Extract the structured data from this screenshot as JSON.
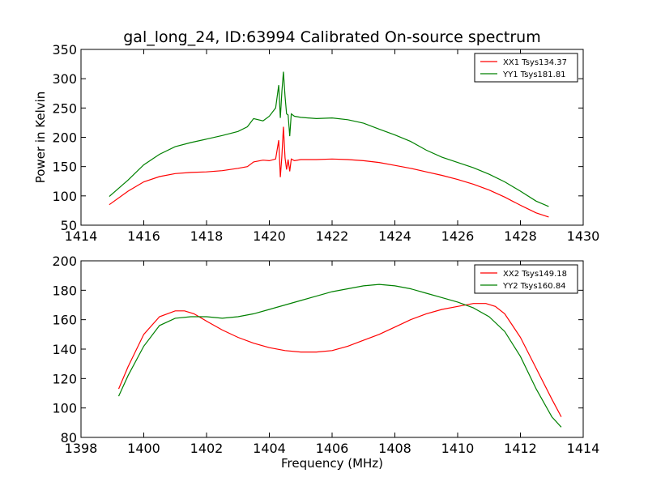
{
  "chart_data": [
    {
      "type": "line",
      "title": "gal_long_24, ID:63994 Calibrated On-source spectrum",
      "xlabel": "",
      "ylabel": "Power in Kelvin",
      "xlim": [
        1414,
        1430
      ],
      "ylim": [
        50,
        350
      ],
      "xticks": [
        "1414",
        "1416",
        "1418",
        "1420",
        "1422",
        "1424",
        "1426",
        "1428",
        "1430"
      ],
      "yticks": [
        "50",
        "100",
        "150",
        "200",
        "250",
        "300",
        "350"
      ],
      "legend_position": "top-right",
      "grid": false,
      "series": [
        {
          "name": "XX1 Tsys134.37",
          "color": "#ff0000",
          "x": [
            1414.9,
            1415.5,
            1416.0,
            1416.5,
            1417.0,
            1417.5,
            1418.0,
            1418.5,
            1419.0,
            1419.3,
            1419.5,
            1419.8,
            1420.0,
            1420.2,
            1420.3,
            1420.35,
            1420.4,
            1420.45,
            1420.5,
            1420.55,
            1420.6,
            1420.65,
            1420.7,
            1420.8,
            1421.0,
            1421.5,
            1422.0,
            1422.5,
            1423.0,
            1423.5,
            1424.0,
            1424.5,
            1425.0,
            1425.5,
            1426.0,
            1426.5,
            1427.0,
            1427.5,
            1428.0,
            1428.5,
            1428.9
          ],
          "y": [
            85,
            108,
            124,
            133,
            138,
            140,
            141,
            143,
            147,
            150,
            158,
            161,
            160,
            163,
            195,
            132,
            168,
            218,
            165,
            145,
            162,
            142,
            163,
            160,
            162,
            162,
            163,
            162,
            160,
            157,
            152,
            147,
            141,
            135,
            128,
            120,
            110,
            98,
            84,
            71,
            64
          ]
        },
        {
          "name": "YY1 Tsys181.81",
          "color": "#008000",
          "x": [
            1414.9,
            1415.5,
            1416.0,
            1416.5,
            1417.0,
            1417.5,
            1418.0,
            1418.5,
            1419.0,
            1419.3,
            1419.5,
            1419.8,
            1420.0,
            1420.2,
            1420.3,
            1420.35,
            1420.4,
            1420.45,
            1420.5,
            1420.55,
            1420.6,
            1420.65,
            1420.7,
            1420.8,
            1421.0,
            1421.5,
            1422.0,
            1422.5,
            1423.0,
            1423.5,
            1424.0,
            1424.5,
            1425.0,
            1425.5,
            1426.0,
            1426.5,
            1427.0,
            1427.5,
            1428.0,
            1428.5,
            1428.9
          ],
          "y": [
            99,
            127,
            153,
            171,
            184,
            191,
            197,
            203,
            210,
            218,
            232,
            228,
            236,
            250,
            289,
            233,
            278,
            312,
            270,
            240,
            238,
            202,
            240,
            236,
            234,
            232,
            233,
            230,
            224,
            214,
            204,
            193,
            178,
            166,
            157,
            148,
            137,
            124,
            108,
            91,
            82
          ]
        }
      ]
    },
    {
      "type": "line",
      "title": "",
      "xlabel": "Frequency (MHz)",
      "ylabel": "",
      "xlim": [
        1398,
        1414
      ],
      "ylim": [
        80,
        200
      ],
      "xticks": [
        "1398",
        "1400",
        "1402",
        "1404",
        "1406",
        "1408",
        "1410",
        "1412",
        "1414"
      ],
      "yticks": [
        "80",
        "100",
        "120",
        "140",
        "160",
        "180",
        "200"
      ],
      "legend_position": "top-right",
      "grid": false,
      "series": [
        {
          "name": "XX2 Tsys149.18",
          "color": "#ff0000",
          "x": [
            1399.2,
            1399.5,
            1400.0,
            1400.5,
            1401.0,
            1401.3,
            1401.6,
            1402.0,
            1402.5,
            1403.0,
            1403.5,
            1404.0,
            1404.5,
            1405.0,
            1405.5,
            1406.0,
            1406.5,
            1407.0,
            1407.5,
            1408.0,
            1408.5,
            1409.0,
            1409.5,
            1410.0,
            1410.5,
            1410.9,
            1411.2,
            1411.5,
            1412.0,
            1412.5,
            1413.0,
            1413.3
          ],
          "y": [
            113,
            128,
            150,
            162,
            166,
            166,
            164,
            159,
            153,
            148,
            144,
            141,
            139,
            138,
            138,
            139,
            142,
            146,
            150,
            155,
            160,
            164,
            167,
            169,
            171,
            171,
            169,
            164,
            148,
            127,
            106,
            94
          ]
        },
        {
          "name": "YY2 Tsys160.84",
          "color": "#008000",
          "x": [
            1399.2,
            1399.5,
            1400.0,
            1400.5,
            1401.0,
            1401.5,
            1402.0,
            1402.5,
            1403.0,
            1403.5,
            1404.0,
            1404.5,
            1405.0,
            1405.5,
            1406.0,
            1406.5,
            1407.0,
            1407.5,
            1408.0,
            1408.5,
            1409.0,
            1409.5,
            1410.0,
            1410.5,
            1411.0,
            1411.5,
            1412.0,
            1412.5,
            1413.0,
            1413.3
          ],
          "y": [
            108,
            122,
            142,
            156,
            161,
            162,
            162,
            161,
            162,
            164,
            167,
            170,
            173,
            176,
            179,
            181,
            183,
            184,
            183,
            181,
            178,
            175,
            172,
            168,
            162,
            152,
            135,
            113,
            94,
            87
          ]
        }
      ]
    }
  ]
}
